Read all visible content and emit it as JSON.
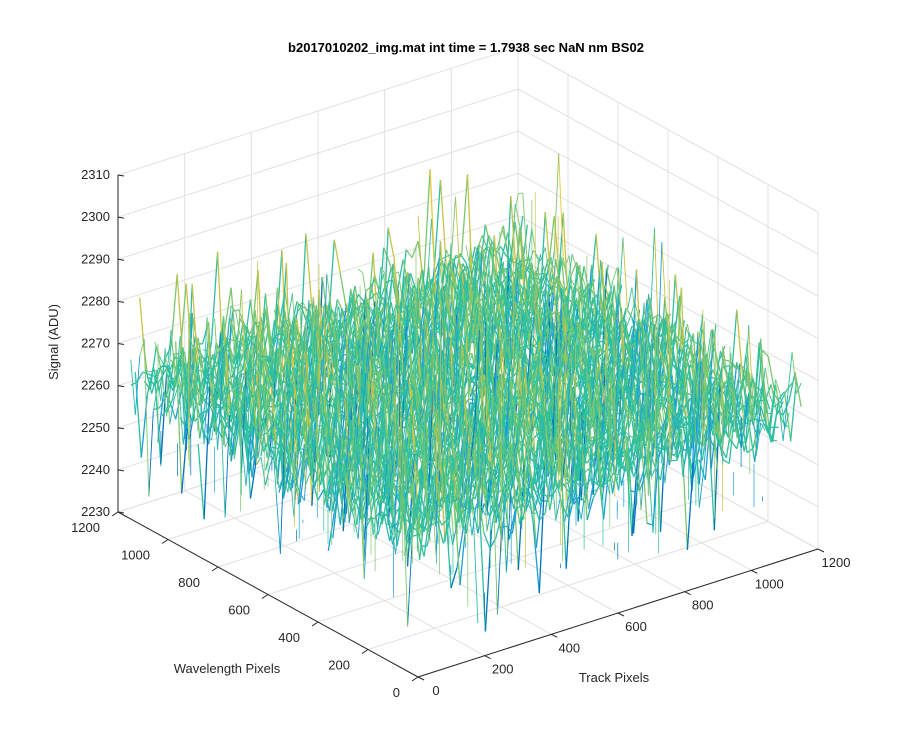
{
  "window": {
    "background": "#ffffff"
  },
  "chart_data": {
    "type": "surface",
    "title": "b2017010202_img.mat int time = 1.7938 sec  NaN nm BS02",
    "xlabel": "Track Pixels",
    "ylabel": "Wavelength Pixels",
    "zlabel": "Signal (ADU)",
    "xlim": [
      0,
      1200
    ],
    "ylim": [
      0,
      1200
    ],
    "zlim": [
      2230,
      2310
    ],
    "x_ticks": [
      0,
      200,
      400,
      600,
      800,
      1000,
      1200
    ],
    "y_ticks": [
      0,
      200,
      400,
      600,
      800,
      1000,
      1200
    ],
    "z_ticks": [
      2230,
      2240,
      2250,
      2260,
      2270,
      2280,
      2290,
      2300,
      2310
    ],
    "data_extent": {
      "x": [
        1,
        1150
      ],
      "y": [
        1,
        1150
      ]
    },
    "signal_mean": 2264,
    "signal_range": [
      2233,
      2303
    ],
    "grid": true,
    "colormap": [
      "#0072bd",
      "#1a9ed6",
      "#2ebfa0",
      "#7cc66e",
      "#c8c246",
      "#e8c838"
    ]
  }
}
